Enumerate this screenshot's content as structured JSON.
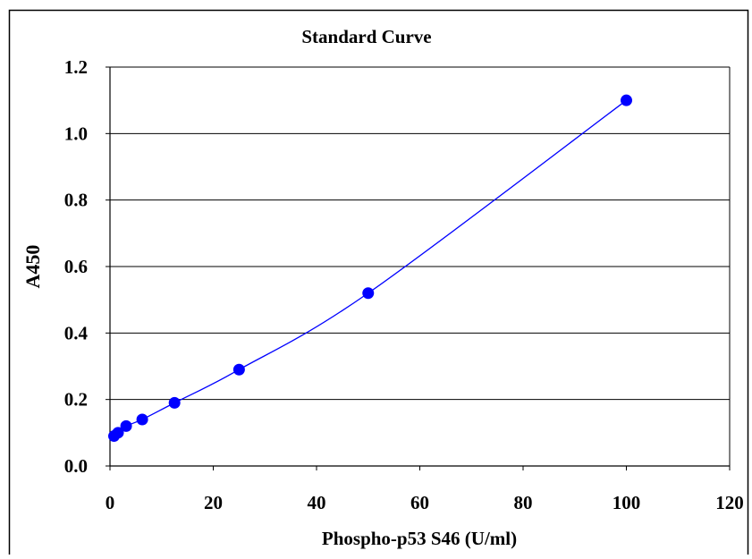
{
  "chart_data": {
    "type": "scatter",
    "title": "Standard Curve",
    "xlabel": "Phospho-p53 S46 (U/ml)",
    "ylabel": "A450",
    "xlim": [
      0,
      120
    ],
    "ylim": [
      0,
      1.2
    ],
    "xticks": [
      "0",
      "20",
      "40",
      "60",
      "80",
      "100",
      "120"
    ],
    "yticks": [
      "0.0",
      "0.2",
      "0.4",
      "0.6",
      "0.8",
      "1.0",
      "1.2"
    ],
    "grid": "horizontal major gridlines",
    "legend": "none",
    "series": [
      {
        "x": [
          0.78,
          1.56,
          3.13,
          6.25,
          12.5,
          25,
          50,
          100
        ],
        "y": [
          0.09,
          0.1,
          0.12,
          0.14,
          0.19,
          0.29,
          0.52,
          1.1
        ]
      }
    ],
    "colors": {
      "series": "#0000ff",
      "axes": "#000000",
      "grid": "#000000",
      "background": "#ffffff"
    }
  }
}
